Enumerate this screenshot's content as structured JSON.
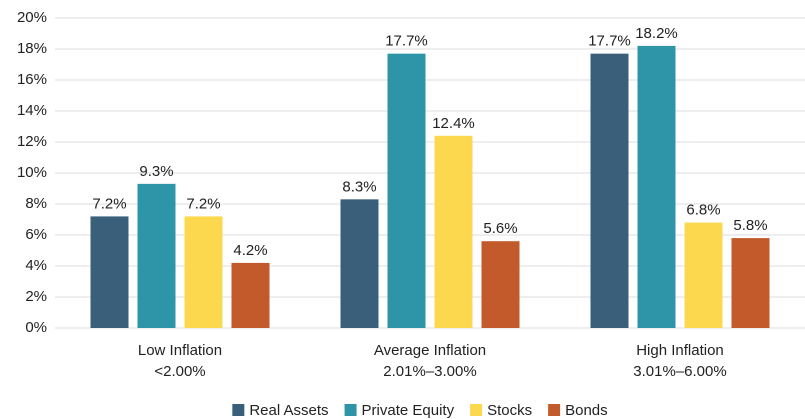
{
  "chart_data": {
    "type": "bar",
    "categories": [
      [
        "Low Inflation",
        "<2.00%"
      ],
      [
        "Average Inflation",
        "2.01%–3.00%"
      ],
      [
        "High Inflation",
        "3.01%–6.00%"
      ]
    ],
    "series": [
      {
        "name": "Real Assets",
        "color": "#3a5f7b",
        "values": [
          7.2,
          8.3,
          17.7
        ],
        "value_labels": [
          "7.2%",
          "8.3%",
          "17.7%"
        ]
      },
      {
        "name": "Private Equity",
        "color": "#2e94a8",
        "values": [
          9.3,
          17.7,
          18.2
        ],
        "value_labels": [
          "9.3%",
          "17.7%",
          "18.2%"
        ]
      },
      {
        "name": "Stocks",
        "color": "#fcd84f",
        "values": [
          7.2,
          12.4,
          6.8
        ],
        "value_labels": [
          "7.2%",
          "12.4%",
          "6.8%"
        ]
      },
      {
        "name": "Bonds",
        "color": "#c25a2b",
        "values": [
          4.2,
          5.6,
          5.8
        ],
        "value_labels": [
          "4.2%",
          "5.6%",
          "5.8%"
        ]
      }
    ],
    "ylim": [
      0,
      20
    ],
    "yticks": [
      {
        "value": 0,
        "label": "0%"
      },
      {
        "value": 2,
        "label": "2%"
      },
      {
        "value": 4,
        "label": "4%"
      },
      {
        "value": 6,
        "label": "6%"
      },
      {
        "value": 8,
        "label": "8%"
      },
      {
        "value": 10,
        "label": "10%"
      },
      {
        "value": 12,
        "label": "12%"
      },
      {
        "value": 14,
        "label": "14%"
      },
      {
        "value": 16,
        "label": "16%"
      },
      {
        "value": 18,
        "label": "18%"
      },
      {
        "value": 20,
        "label": "20%"
      }
    ],
    "grid": true,
    "legend": "bottom"
  }
}
